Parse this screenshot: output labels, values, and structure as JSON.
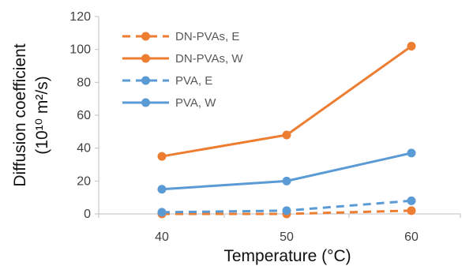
{
  "chart_data": {
    "type": "line",
    "x": [
      40,
      50,
      60
    ],
    "xlabel": "Temperature (°C)",
    "ylabel_line1": "Diffusion coefficient",
    "ylabel_line2": "(10¹⁰ m²/s)",
    "ylim": [
      0,
      120
    ],
    "yticks": [
      0,
      20,
      40,
      60,
      80,
      100,
      120
    ],
    "xticks": [
      "40",
      "50",
      "60"
    ],
    "grid": false,
    "legend_position": "top-left",
    "series": [
      {
        "name": "DN-PVAs, E",
        "values": [
          0,
          0,
          2
        ],
        "color": "#ed7d31",
        "style": "dashed"
      },
      {
        "name": "DN-PVAs, W",
        "values": [
          35,
          48,
          102
        ],
        "color": "#ed7d31",
        "style": "solid"
      },
      {
        "name": "PVA, E",
        "values": [
          1,
          2,
          8
        ],
        "color": "#5b9bd5",
        "style": "dashed"
      },
      {
        "name": "PVA, W",
        "values": [
          15,
          20,
          37
        ],
        "color": "#5b9bd5",
        "style": "solid"
      }
    ]
  }
}
